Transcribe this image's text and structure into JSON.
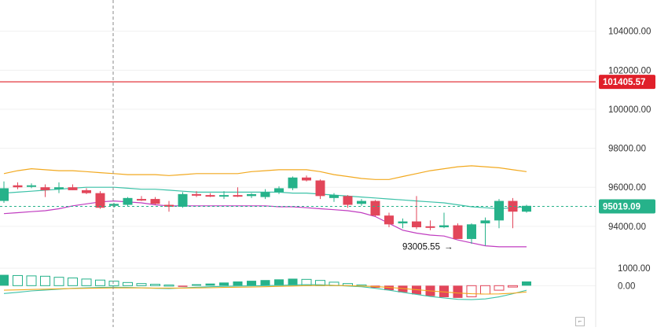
{
  "colors": {
    "up": "#26b28a",
    "down": "#e2465a",
    "grid": "#f0f0f0",
    "upper_band": "#f2a91f",
    "middle_band": "#3cc2a8",
    "lower_band": "#c03cc0",
    "price_line": "#e0202a",
    "current_price": "#26b28a",
    "macd_line": "#3cc2a8",
    "signal_line": "#f2a91f"
  },
  "watermark": "",
  "chart_data": [
    {
      "type": "candlestick",
      "y_ticks": [
        "104000.00",
        "102000.00",
        "100000.00",
        "98000.00",
        "96000.00",
        "94000.00"
      ],
      "ylim": [
        92300,
        105600
      ],
      "price_line": {
        "value": 101405.57,
        "label": "101405.57"
      },
      "current_price": {
        "value": 95019.09,
        "label": "95019.09"
      },
      "annotation": {
        "label": "93005.55",
        "value": 93005.55,
        "arrow": "→"
      },
      "candles": [
        {
          "o": 95300,
          "h": 96300,
          "l": 95200,
          "c": 95950
        },
        {
          "o": 96100,
          "h": 96250,
          "l": 95900,
          "c": 96000
        },
        {
          "o": 96050,
          "h": 96200,
          "l": 95950,
          "c": 96100
        },
        {
          "o": 96000,
          "h": 96150,
          "l": 95500,
          "c": 95850
        },
        {
          "o": 95900,
          "h": 96250,
          "l": 95700,
          "c": 96000
        },
        {
          "o": 96000,
          "h": 96150,
          "l": 95850,
          "c": 95850
        },
        {
          "o": 95850,
          "h": 95950,
          "l": 95650,
          "c": 95700
        },
        {
          "o": 95700,
          "h": 95800,
          "l": 94900,
          "c": 94950
        },
        {
          "o": 95050,
          "h": 95200,
          "l": 94950,
          "c": 95150
        },
        {
          "o": 95100,
          "h": 95500,
          "l": 95000,
          "c": 95450
        },
        {
          "o": 95400,
          "h": 95550,
          "l": 95300,
          "c": 95350
        },
        {
          "o": 95400,
          "h": 95500,
          "l": 95100,
          "c": 95150
        },
        {
          "o": 95100,
          "h": 95300,
          "l": 94750,
          "c": 95000
        },
        {
          "o": 95000,
          "h": 95750,
          "l": 94950,
          "c": 95650
        },
        {
          "o": 95650,
          "h": 95800,
          "l": 95500,
          "c": 95600
        },
        {
          "o": 95600,
          "h": 95700,
          "l": 95500,
          "c": 95550
        },
        {
          "o": 95550,
          "h": 95800,
          "l": 95400,
          "c": 95600
        },
        {
          "o": 95600,
          "h": 96000,
          "l": 95500,
          "c": 95550
        },
        {
          "o": 95550,
          "h": 95700,
          "l": 95450,
          "c": 95650
        },
        {
          "o": 95500,
          "h": 95900,
          "l": 95400,
          "c": 95750
        },
        {
          "o": 95750,
          "h": 96050,
          "l": 95650,
          "c": 95950
        },
        {
          "o": 95950,
          "h": 96550,
          "l": 95850,
          "c": 96500
        },
        {
          "o": 96500,
          "h": 96600,
          "l": 96300,
          "c": 96350
        },
        {
          "o": 96350,
          "h": 96400,
          "l": 95400,
          "c": 95550
        },
        {
          "o": 95450,
          "h": 95700,
          "l": 95250,
          "c": 95600
        },
        {
          "o": 95550,
          "h": 95600,
          "l": 94950,
          "c": 95100
        },
        {
          "o": 95150,
          "h": 95400,
          "l": 95050,
          "c": 95300
        },
        {
          "o": 95300,
          "h": 95350,
          "l": 94500,
          "c": 94550
        },
        {
          "o": 94550,
          "h": 94700,
          "l": 93950,
          "c": 94100
        },
        {
          "o": 94150,
          "h": 94400,
          "l": 93900,
          "c": 94250
        },
        {
          "o": 94250,
          "h": 95550,
          "l": 93850,
          "c": 93950
        },
        {
          "o": 94000,
          "h": 94300,
          "l": 93800,
          "c": 93950
        },
        {
          "o": 93950,
          "h": 94700,
          "l": 93900,
          "c": 94050
        },
        {
          "o": 94050,
          "h": 94150,
          "l": 93450,
          "c": 93350
        },
        {
          "o": 93350,
          "h": 94150,
          "l": 93100,
          "c": 94100
        },
        {
          "o": 94150,
          "h": 94450,
          "l": 93005.55,
          "c": 94300
        },
        {
          "o": 94300,
          "h": 95400,
          "l": 93900,
          "c": 95300
        },
        {
          "o": 95300,
          "h": 95450,
          "l": 93900,
          "c": 94750
        },
        {
          "o": 94750,
          "h": 95100,
          "l": 94700,
          "c": 95050
        }
      ],
      "bollinger": {
        "upper": [
          96700,
          96850,
          96950,
          96900,
          96850,
          96850,
          96800,
          96750,
          96700,
          96650,
          96650,
          96650,
          96600,
          96650,
          96700,
          96700,
          96700,
          96700,
          96800,
          96850,
          96900,
          96900,
          96900,
          96800,
          96650,
          96550,
          96450,
          96400,
          96400,
          96550,
          96700,
          96850,
          96950,
          97050,
          97100,
          97050,
          97000,
          96900,
          96800
        ],
        "middle": [
          95700,
          95750,
          95800,
          95850,
          95900,
          95950,
          96000,
          96000,
          96000,
          95950,
          95900,
          95900,
          95850,
          95800,
          95750,
          95750,
          95750,
          95750,
          95750,
          95750,
          95750,
          95700,
          95700,
          95650,
          95600,
          95550,
          95500,
          95450,
          95400,
          95350,
          95300,
          95250,
          95200,
          95100,
          95000,
          94950,
          94900,
          94950,
          95000
        ],
        "lower": [
          94650,
          94700,
          94750,
          94800,
          94900,
          95050,
          95150,
          95250,
          95300,
          95250,
          95200,
          95100,
          95050,
          95050,
          95050,
          95050,
          95050,
          95050,
          95050,
          95050,
          95000,
          95000,
          94950,
          94900,
          94850,
          94800,
          94700,
          94500,
          94150,
          93800,
          93650,
          93550,
          93500,
          93300,
          93150,
          93000,
          92950,
          92950,
          92950
        ]
      }
    },
    {
      "type": "macd",
      "y_ticks": [
        "1000.00",
        "0.00"
      ],
      "ylim": [
        -1200,
        1500
      ],
      "histogram": [
        620,
        580,
        560,
        540,
        480,
        440,
        380,
        320,
        260,
        180,
        120,
        80,
        40,
        -40,
        80,
        120,
        180,
        240,
        280,
        320,
        360,
        400,
        360,
        300,
        200,
        120,
        40,
        -120,
        -260,
        -380,
        -500,
        -600,
        -660,
        -700,
        -640,
        -480,
        -260,
        -80,
        240
      ],
      "macd": [
        -450,
        -380,
        -300,
        -250,
        -200,
        -150,
        -120,
        -100,
        -90,
        -100,
        -120,
        -150,
        -170,
        -130,
        -90,
        -60,
        -40,
        -20,
        -10,
        0,
        20,
        40,
        60,
        50,
        20,
        -20,
        -60,
        -150,
        -260,
        -380,
        -500,
        -620,
        -700,
        -780,
        -800,
        -760,
        -640,
        -460,
        -260
      ],
      "signal": [
        -260,
        -240,
        -220,
        -200,
        -180,
        -160,
        -150,
        -140,
        -130,
        -130,
        -130,
        -140,
        -140,
        -140,
        -130,
        -120,
        -100,
        -90,
        -80,
        -60,
        -40,
        -20,
        0,
        10,
        10,
        0,
        -20,
        -50,
        -100,
        -160,
        -230,
        -300,
        -360,
        -420,
        -460,
        -480,
        -470,
        -430,
        -360
      ]
    }
  ]
}
